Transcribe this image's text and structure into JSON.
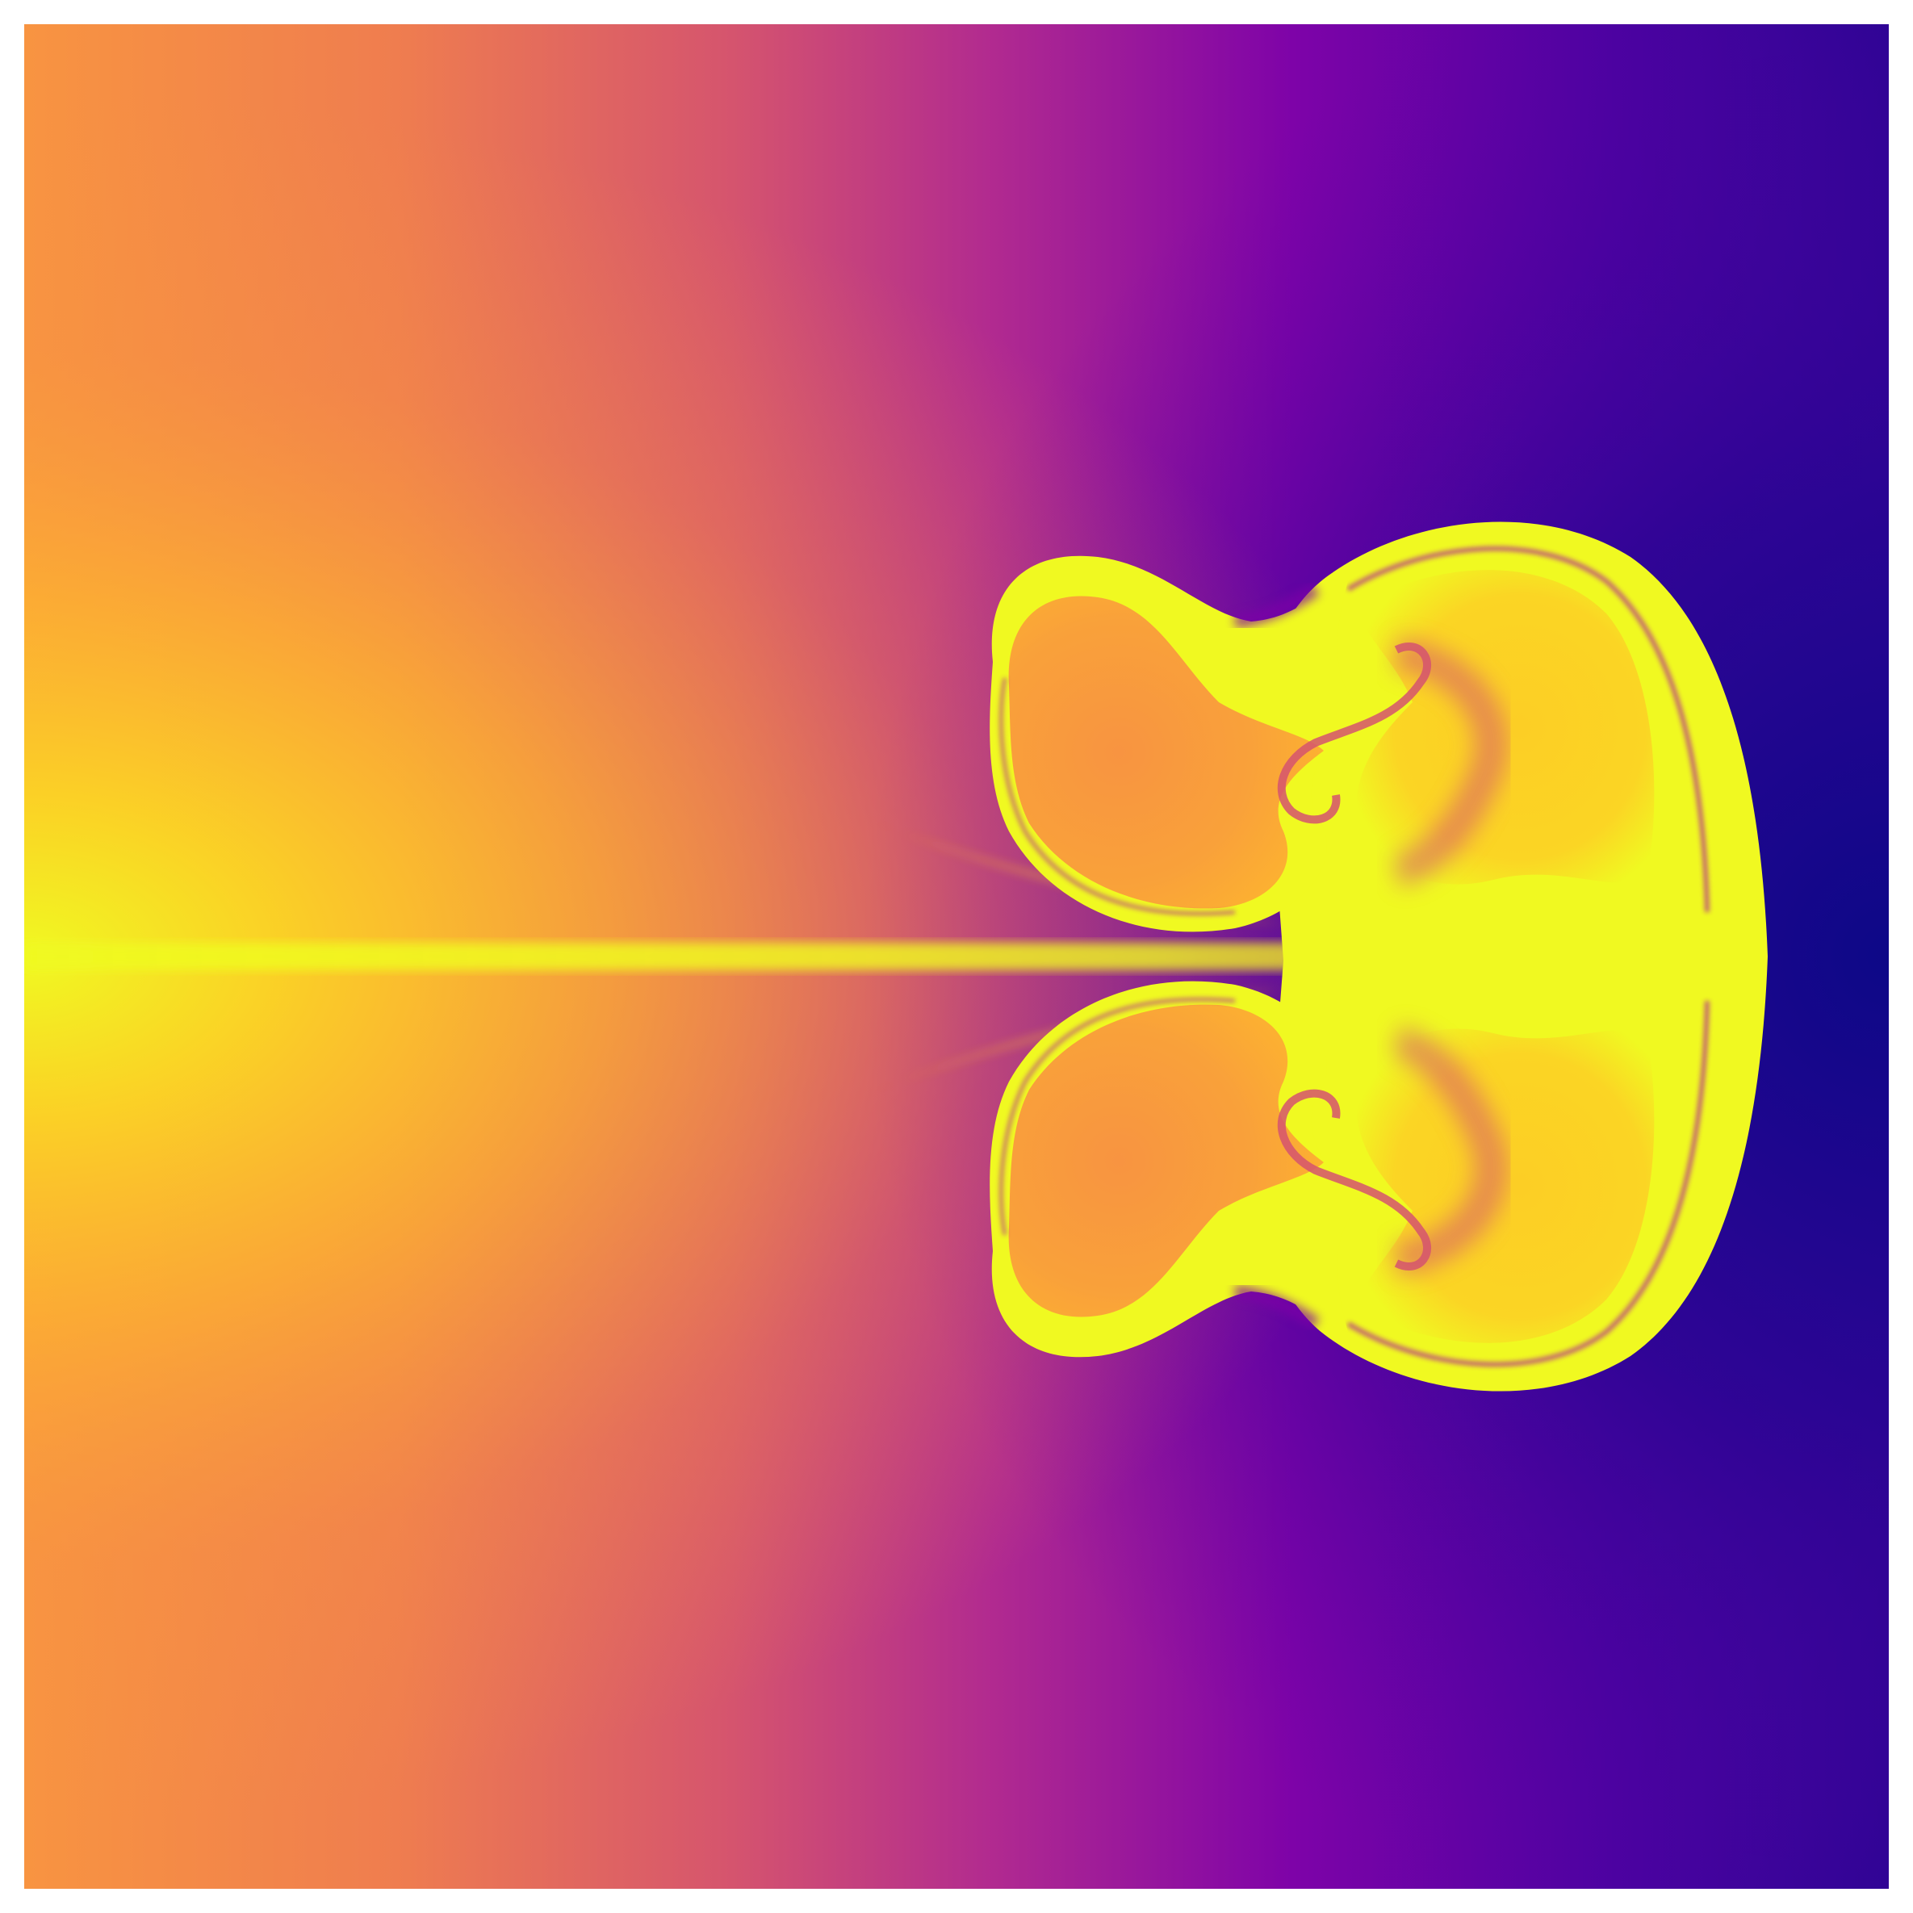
{
  "image": {
    "kind": "scalar-field",
    "colormap": "plasma",
    "colors": {
      "background": "#ffffff",
      "deep": "#0d0887",
      "indigo": "#3b049a",
      "purple": "#7e03a8",
      "magenta": "#b12a90",
      "pink": "#d5546e",
      "coral": "#ef7d4f",
      "orange": "#f89441",
      "amber": "#fdb42f",
      "gold": "#fbd524",
      "yellow": "#f0f921"
    }
  }
}
